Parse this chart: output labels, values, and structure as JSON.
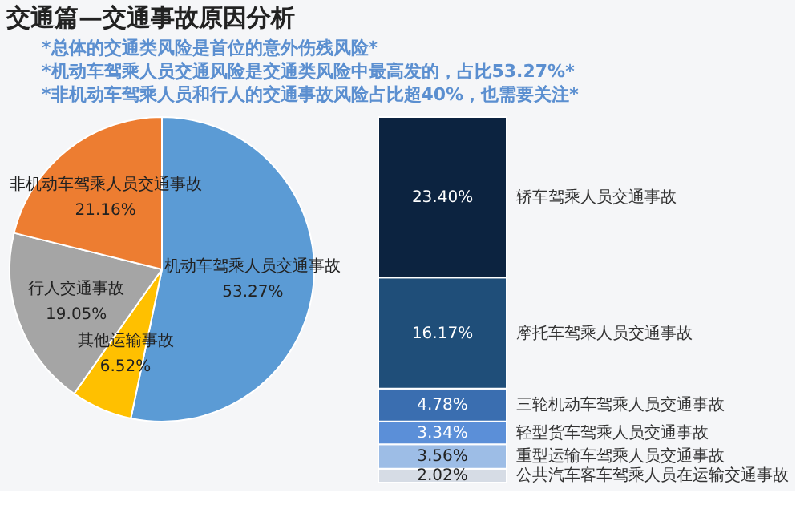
{
  "chart_data": [
    {
      "type": "pie",
      "title": "交通篇—交通事故原因分析",
      "annotations": [
        "*总体的交通类风险是首位的意外伤残风险*",
        "*机动车驾乘人员交通风险是交通类风险中最高发的，占比53.27%*",
        "*非机动车驾乘人员和行人的交通事故风险占比超40%，也需要关注*"
      ],
      "categories": [
        "机动车驾乘人员交通事故",
        "其他运输事故",
        "行人交通事故",
        "非机动车驾乘人员交通事故"
      ],
      "values": [
        53.27,
        6.52,
        19.05,
        21.16
      ],
      "value_labels": [
        "53.27%",
        "6.52%",
        "19.05%",
        "21.16%"
      ],
      "colors": [
        "#5b9bd5",
        "#ffc000",
        "#a5a5a5",
        "#ed7d31"
      ],
      "legend": false
    },
    {
      "type": "bar",
      "stacked": true,
      "categories": [
        null
      ],
      "tick_labels": false,
      "legend": false,
      "series": [
        {
          "name": "公共汽车客车驾乘人员在运输交通事故",
          "color": "#d6dce5",
          "values": [
            2.02
          ],
          "value_labels": [
            "2.02%"
          ]
        },
        {
          "name": "重型运输车驾乘人员交通事故",
          "color": "#9dbde6",
          "values": [
            3.56
          ],
          "value_labels": [
            "3.56%"
          ]
        },
        {
          "name": "轻型货车驾乘人员交通事故",
          "color": "#5b8fd8",
          "values": [
            3.34
          ],
          "value_labels": [
            "3.34%"
          ]
        },
        {
          "name": "三轮机动车驾乘人员交通事故",
          "color": "#3a6eb0",
          "values": [
            4.78
          ],
          "value_labels": [
            "4.78%"
          ]
        },
        {
          "name": "摩托车驾乘人员交通事故",
          "color": "#1f4e79",
          "values": [
            16.17
          ],
          "value_labels": [
            "16.17%"
          ]
        },
        {
          "name": "轿车驾乘人员交通事故",
          "color": "#0c2340",
          "values": [
            23.4
          ],
          "value_labels": [
            "23.40%"
          ]
        }
      ]
    }
  ]
}
